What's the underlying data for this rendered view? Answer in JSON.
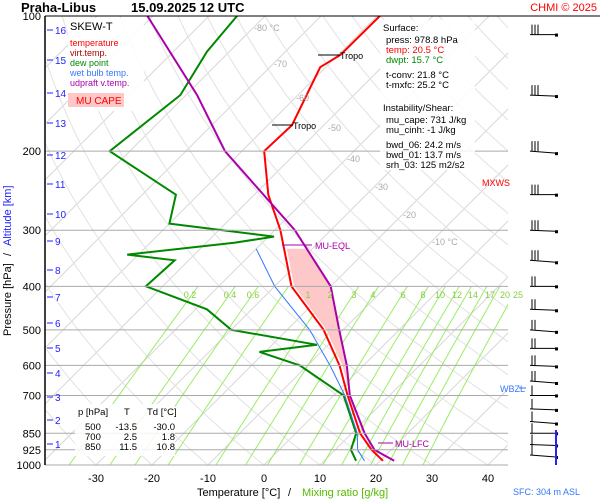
{
  "header": {
    "station": "Praha-Libus",
    "datetime": "15.09.2025 12 UTC",
    "credit": "CHMI © 2025"
  },
  "legend": {
    "title": "SKEW-T",
    "items": [
      {
        "label": "temperature",
        "color": "#ff0000"
      },
      {
        "label": "virt.temp.",
        "color": "#aa0000"
      },
      {
        "label": "dew point",
        "color": "#008800"
      },
      {
        "label": "wet bulb temp.",
        "color": "#3377ff"
      },
      {
        "label": "udpraft v.temp.",
        "color": "#aa00aa"
      }
    ],
    "cape_label": "MU CAPE"
  },
  "surface": {
    "title": "Surface:",
    "press": "press: 978.8 hPa",
    "temp": "temp: 20.5 °C",
    "dwpt": "dwpt: 15.7 °C",
    "tconv": "t-conv: 21.8 °C",
    "tmxfc": "t-mxfc: 25.2 °C"
  },
  "instability": {
    "title": "Instability/Shear:",
    "mu_cape": "mu_cape: 731 J/kg",
    "mu_cinh": "mu_cinh: -1 J/kg",
    "bwd_06": "bwd_06: 24.2 m/s",
    "bwd_01": "bwd_01: 13.7 m/s",
    "srh_03": "srh_03: 125 m2/s2"
  },
  "levels_table": {
    "headers": [
      "p [hPa]",
      "T",
      "Td [°C]"
    ],
    "rows": [
      [
        "500",
        "-13.5",
        "-30.0"
      ],
      [
        "700",
        "2.5",
        "1.8"
      ],
      [
        "850",
        "11.5",
        "10.8"
      ]
    ]
  },
  "annotations": {
    "tropo1": "Tropo",
    "tropo2": "Tropo",
    "mu_eql": "MU-EQL",
    "mu_lfc": "MU-LFC",
    "wbzl": "WBZL",
    "mxws": "MXWS",
    "sfc": "SFC: 304 m ASL"
  },
  "chart_data": {
    "type": "line",
    "title": "Praha-Libus 15.09.2025 12 UTC",
    "xlabel": "Temperature [°C]",
    "xlabel2": "Mixing ratio [g/kg]",
    "ylabel": "Pressure [hPa]",
    "ylabel2": "Altitude [km]",
    "y_scale": "log",
    "ylim": [
      1000,
      100
    ],
    "xlim_at_1000hPa": [
      -43,
      44
    ],
    "x_ticks": [
      "-30",
      "-20",
      "-10",
      "0",
      "10",
      "20",
      "30",
      "40"
    ],
    "y_ticks": [
      "100",
      "200",
      "300",
      "400",
      "500",
      "600",
      "700",
      "850",
      "925",
      "1000"
    ],
    "altitude_ticks_km": [
      "1",
      "2",
      "3",
      "4",
      "5",
      "6",
      "7",
      "8",
      "9",
      "10",
      "11",
      "12",
      "13",
      "14",
      "15",
      "16"
    ],
    "isotherm_labels": [
      "-80 °C",
      "-70",
      "-60",
      "-50",
      "-40",
      "-30",
      "-20",
      "-10 °C"
    ],
    "mixing_ratio_labels": [
      "0.2",
      "0.4",
      "0.6",
      "1",
      "2",
      "3",
      "4",
      "6",
      "8",
      "10",
      "12",
      "14",
      "17",
      "20",
      "25"
    ],
    "grid": true,
    "series": [
      {
        "name": "temperature",
        "color": "#ff0000",
        "points": [
          [
            978.8,
            20.5
          ],
          [
            925,
            16.5
          ],
          [
            850,
            11.5
          ],
          [
            700,
            2.5
          ],
          [
            600,
            -4.3
          ],
          [
            500,
            -13.5
          ],
          [
            400,
            -27
          ],
          [
            300,
            -39
          ],
          [
            250,
            -47.5
          ],
          [
            200,
            -56
          ],
          [
            175,
            -55.7
          ],
          [
            130,
            -61
          ],
          [
            122,
            -59.6
          ],
          [
            100,
            -59.5
          ]
        ]
      },
      {
        "name": "dew point",
        "color": "#008800",
        "points": [
          [
            978.8,
            15.7
          ],
          [
            925,
            12.8
          ],
          [
            850,
            10.8
          ],
          [
            700,
            1.8
          ],
          [
            600,
            -11.4
          ],
          [
            560,
            -21
          ],
          [
            540,
            -12
          ],
          [
            500,
            -30
          ],
          [
            450,
            -38
          ],
          [
            400,
            -53
          ],
          [
            350,
            -52.5
          ],
          [
            340,
            -62
          ],
          [
            320,
            -45
          ],
          [
            310,
            -39
          ],
          [
            290,
            -60
          ],
          [
            250,
            -64
          ],
          [
            200,
            -83.6
          ],
          [
            150,
            -81
          ],
          [
            120,
            -84
          ],
          [
            100,
            -85
          ]
        ]
      },
      {
        "name": "wet bulb temp.",
        "color": "#3377ff",
        "points": [
          [
            978.8,
            17.2
          ],
          [
            925,
            14
          ],
          [
            850,
            11
          ],
          [
            700,
            2
          ],
          [
            600,
            -6
          ],
          [
            500,
            -16
          ],
          [
            400,
            -30
          ],
          [
            330,
            -40
          ]
        ]
      },
      {
        "name": "udpraft v.temp.",
        "color": "#aa00aa",
        "points": [
          [
            978.8,
            22.5
          ],
          [
            925,
            17
          ],
          [
            850,
            12.3
          ],
          [
            700,
            2.9
          ],
          [
            600,
            -3
          ],
          [
            500,
            -10.7
          ],
          [
            400,
            -20
          ],
          [
            300,
            -36.4
          ],
          [
            200,
            -63
          ],
          [
            150,
            -78
          ],
          [
            100,
            -101
          ]
        ]
      }
    ],
    "wind_levels_hPa": [
      110,
      150,
      200,
      250,
      300,
      350,
      400,
      450,
      500,
      550,
      600,
      650,
      700,
      750,
      800,
      850,
      900,
      950
    ]
  }
}
